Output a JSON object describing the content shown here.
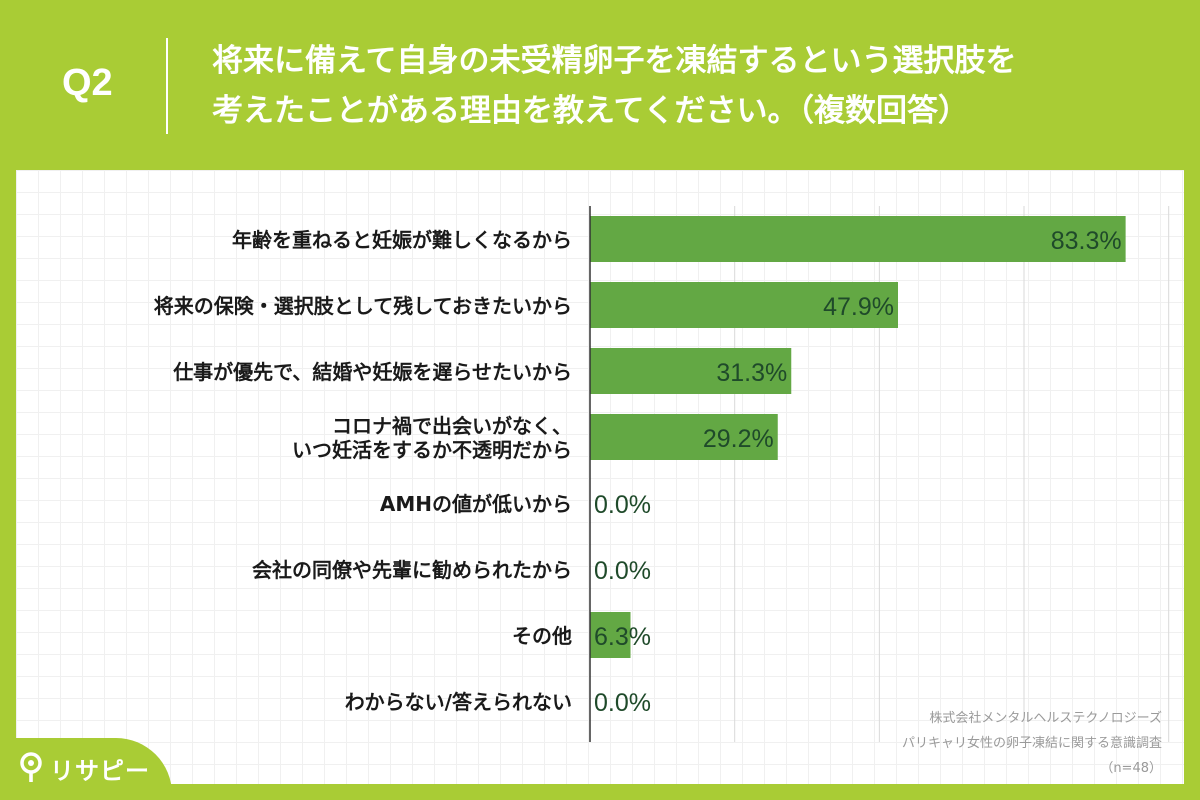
{
  "header": {
    "q_label": "Q2",
    "title_line1": "将来に備えて自身の未受精卵子を凍結するという選択肢を",
    "title_line2": "考えたことがある理由を教えてください。（複数回答）"
  },
  "colors": {
    "background": "#a9cc35",
    "bar": "#63a844",
    "value_label": "#1f4a2a",
    "category_label": "#1a1a1a"
  },
  "chart_data": {
    "type": "bar",
    "orientation": "horizontal",
    "categories": [
      [
        "年齢を重ねると妊娠が難しくなるから"
      ],
      [
        "将来の保険・選択肢として残しておきたいから"
      ],
      [
        "仕事が優先で、結婚や妊娠を遅らせたいから"
      ],
      [
        "コロナ禍で出会いがなく、",
        "いつ妊活をするか不透明だから"
      ],
      [
        "AMHの値が低いから"
      ],
      [
        "会社の同僚や先輩に勧められたから"
      ],
      [
        "その他"
      ],
      [
        "わからない/答えられない"
      ]
    ],
    "values": [
      83.3,
      47.9,
      31.3,
      29.2,
      0.0,
      0.0,
      6.3,
      0.0
    ],
    "value_labels": [
      "83.3%",
      "47.9%",
      "31.3%",
      "29.2%",
      "0.0%",
      "0.0%",
      "6.3%",
      "0.0%"
    ],
    "xlim": [
      0,
      90
    ],
    "grid": true
  },
  "source": {
    "line1": "株式会社メンタルヘルステクノロジーズ",
    "line2": "パリキャリ女性の卵子凍結に関する意識調査",
    "line3": "（n=48）"
  },
  "logo": {
    "text": "リサピー",
    "icon": "pin-icon"
  }
}
